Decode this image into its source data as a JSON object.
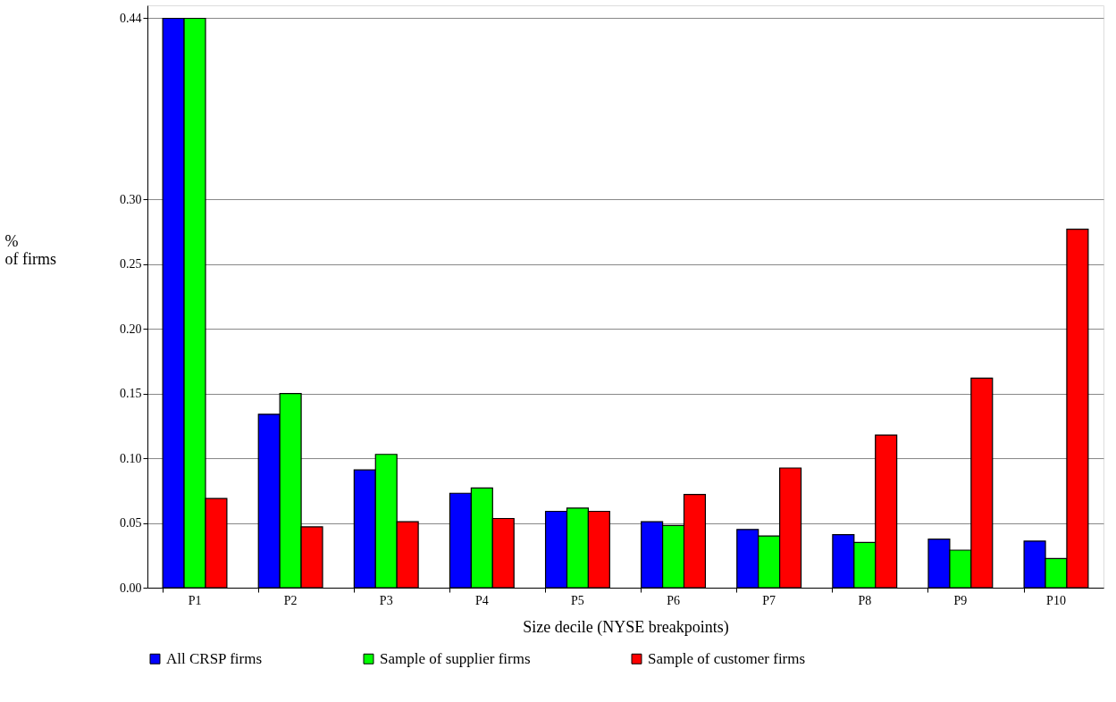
{
  "chart_data": {
    "type": "bar",
    "xlabel": "Size decile (NYSE breakpoints)",
    "ylabel": "%\nof firms",
    "categories": [
      "P1",
      "P2",
      "P3",
      "P4",
      "P5",
      "P6",
      "P7",
      "P8",
      "P9",
      "P10"
    ],
    "series": [
      {
        "name": "All CRSP firms",
        "color": "#0000ff",
        "values": [
          0.44,
          0.134,
          0.091,
          0.073,
          0.059,
          0.051,
          0.045,
          0.041,
          0.0375,
          0.036
        ]
      },
      {
        "name": "Sample of supplier firms",
        "color": "#00ff00",
        "values": [
          0.44,
          0.15,
          0.103,
          0.077,
          0.0615,
          0.048,
          0.04,
          0.035,
          0.029,
          0.0225
        ]
      },
      {
        "name": "Sample of customer firms",
        "color": "#ff0000",
        "values": [
          0.069,
          0.047,
          0.051,
          0.0535,
          0.059,
          0.072,
          0.0925,
          0.118,
          0.162,
          0.277
        ]
      }
    ],
    "ylim": [
      0,
      0.45
    ],
    "yticks": [
      {
        "value": 0,
        "label": "0.00"
      },
      {
        "value": 0.05,
        "label": "0.05"
      },
      {
        "value": 0.1,
        "label": "0.10"
      },
      {
        "value": 0.15,
        "label": "0.15"
      },
      {
        "value": 0.2,
        "label": "0.20"
      },
      {
        "value": 0.25,
        "label": "0.25"
      },
      {
        "value": 0.3,
        "label": "0.30"
      },
      {
        "value": 0.44,
        "label": "0.44"
      }
    ],
    "grid": "y",
    "legend": "bottom"
  }
}
